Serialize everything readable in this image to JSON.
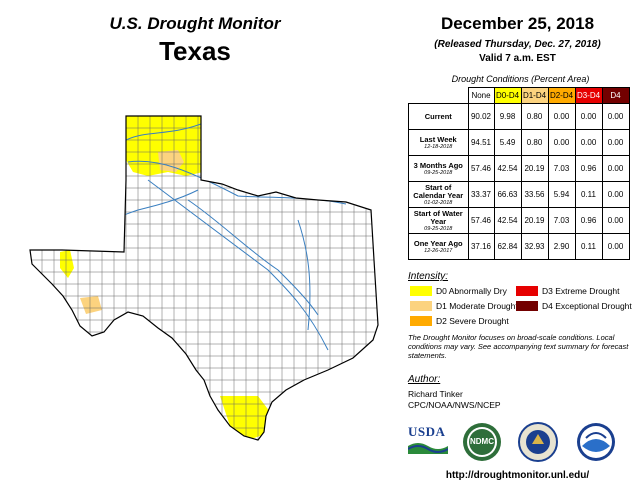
{
  "header": {
    "title": "U.S. Drought Monitor",
    "state": "Texas",
    "date": "December 25, 2018",
    "released": "(Released Thursday, Dec. 27, 2018)",
    "valid": "Valid 7 a.m. EST"
  },
  "table": {
    "caption": "Drought Conditions (Percent Area)",
    "columns": [
      "None",
      "D0-D4",
      "D1-D4",
      "D2-D4",
      "D3-D4",
      "D4"
    ],
    "column_colors": [
      "#ffffff",
      "#ffff00",
      "#fcd37f",
      "#ffaa00",
      "#e60000",
      "#730000"
    ],
    "rows": [
      {
        "label": "Current",
        "sub": "",
        "values": [
          "90.02",
          "9.98",
          "0.80",
          "0.00",
          "0.00",
          "0.00"
        ]
      },
      {
        "label": "Last Week",
        "sub": "12-18-2018",
        "values": [
          "94.51",
          "5.49",
          "0.80",
          "0.00",
          "0.00",
          "0.00"
        ]
      },
      {
        "label": "3 Months Ago",
        "sub": "09-25-2018",
        "values": [
          "57.46",
          "42.54",
          "20.19",
          "7.03",
          "0.96",
          "0.00"
        ]
      },
      {
        "label": "Start of Calendar Year",
        "sub": "01-02-2018",
        "values": [
          "33.37",
          "66.63",
          "33.56",
          "5.94",
          "0.11",
          "0.00"
        ]
      },
      {
        "label": "Start of Water Year",
        "sub": "09-25-2018",
        "values": [
          "57.46",
          "42.54",
          "20.19",
          "7.03",
          "0.96",
          "0.00"
        ]
      },
      {
        "label": "One Year Ago",
        "sub": "12-26-2017",
        "values": [
          "37.16",
          "62.84",
          "32.93",
          "2.90",
          "0.11",
          "0.00"
        ]
      }
    ]
  },
  "legend": {
    "title": "Intensity:",
    "items": [
      {
        "label": "D0 Abnormally Dry",
        "color": "#ffff00"
      },
      {
        "label": "D1 Moderate Drought",
        "color": "#fcd37f"
      },
      {
        "label": "D2 Severe Drought",
        "color": "#ffaa00"
      },
      {
        "label": "D3 Extreme Drought",
        "color": "#e60000"
      },
      {
        "label": "D4 Exceptional Drought",
        "color": "#730000"
      }
    ]
  },
  "note": "The Drought Monitor focuses on broad-scale conditions. Local conditions may vary. See accompanying text summary for forecast statements.",
  "author": {
    "title": "Author:",
    "name": "Richard Tinker",
    "org": "CPC/NOAA/NWS/NCEP"
  },
  "logos": {
    "usda": "USDA",
    "ndmc": "NDMC"
  },
  "url": "http://droughtmonitor.unl.edu/",
  "map": {
    "state_fill": "#ffffff",
    "county_stroke": "#555555",
    "river_color": "#3a7fc0",
    "d0_color": "#ffff00",
    "d1_color": "#fcd37f"
  }
}
